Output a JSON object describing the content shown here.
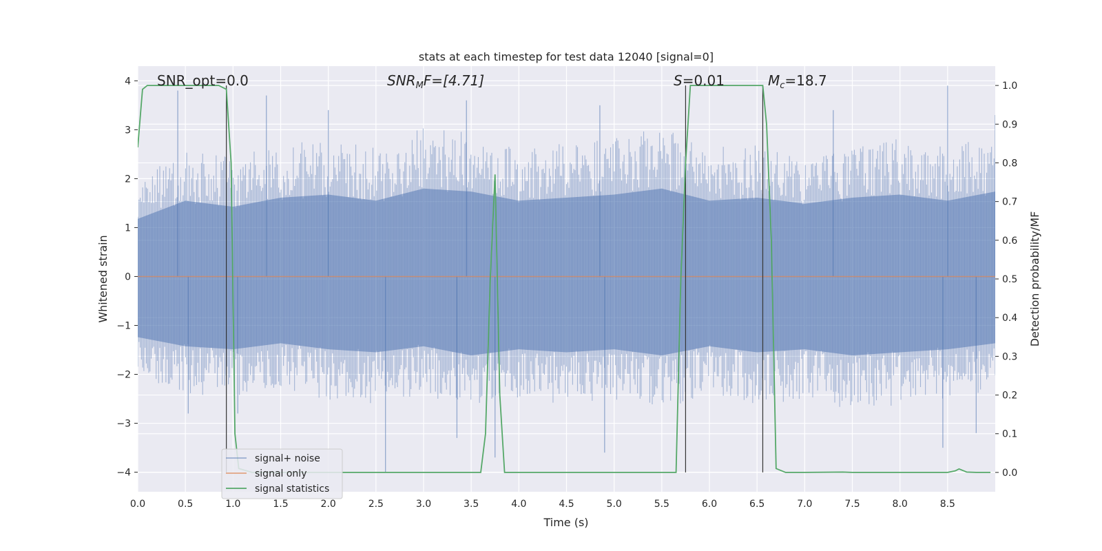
{
  "chart_data": {
    "type": "line",
    "title": "stats at each timestep for test data 12040 [signal=0]",
    "xlabel": "Time (s)",
    "ylabel": "Whitened strain",
    "ylabel_right": "Detection probability/MF",
    "xlim": [
      0.0,
      9.0
    ],
    "ylim": [
      -4.4,
      4.3
    ],
    "ylim_right": [
      -0.05,
      1.05
    ],
    "xticks": [
      0.0,
      0.5,
      1.0,
      1.5,
      2.0,
      2.5,
      3.0,
      3.5,
      4.0,
      4.5,
      5.0,
      5.5,
      6.0,
      6.5,
      7.0,
      7.5,
      8.0,
      8.5
    ],
    "xtick_labels": [
      "0.0",
      "0.5",
      "1.0",
      "1.5",
      "2.0",
      "2.5",
      "3.0",
      "3.5",
      "4.0",
      "4.5",
      "5.0",
      "5.5",
      "6.0",
      "6.5",
      "7.0",
      "7.5",
      "8.0",
      "8.5"
    ],
    "yticks": [
      -4,
      -3,
      -2,
      -1,
      0,
      1,
      2,
      3,
      4
    ],
    "ytick_labels": [
      "−4",
      "−3",
      "−2",
      "−1",
      "0",
      "1",
      "2",
      "3",
      "4"
    ],
    "yticks_right": [
      0.0,
      0.1,
      0.2,
      0.3,
      0.4,
      0.5,
      0.6,
      0.7,
      0.8,
      0.9,
      1.0
    ],
    "ytick_labels_right": [
      "0.0",
      "0.1",
      "0.2",
      "0.3",
      "0.4",
      "0.5",
      "0.6",
      "0.7",
      "0.8",
      "0.9",
      "1.0"
    ],
    "grid": true,
    "legend_placement": "lower-left",
    "annotations": {
      "snr_opt": "SNR_opt=0.0",
      "snr_mf_main": "SNR",
      "snr_mf_sub": "M",
      "snr_mf_rest": "F=[4.71]",
      "s_main": "S",
      "s_rest": "=0.01",
      "mc_main": "M",
      "mc_sub": "c",
      "mc_rest": "=18.7"
    },
    "vertical_lines_x": [
      0.93,
      5.75,
      6.56
    ],
    "series": [
      {
        "name": "signal+ noise",
        "color": "#4c72b0",
        "axis": "left",
        "description": "dense whitened noise, roughly spanning -2 to 2 with spikes to about ±3.8",
        "envelope_x": [
          0.0,
          0.5,
          1.0,
          1.5,
          2.0,
          2.5,
          3.0,
          3.5,
          4.0,
          4.5,
          5.0,
          5.5,
          6.0,
          6.5,
          7.0,
          7.5,
          8.0,
          8.5,
          9.0
        ],
        "envelope_upper": [
          1.9,
          2.5,
          2.3,
          2.6,
          2.7,
          2.5,
          2.9,
          2.8,
          2.5,
          2.6,
          2.7,
          2.9,
          2.5,
          2.6,
          2.4,
          2.6,
          2.7,
          2.5,
          2.8
        ],
        "envelope_lower": [
          -2.0,
          -2.3,
          -2.4,
          -2.2,
          -2.4,
          -2.5,
          -2.3,
          -2.6,
          -2.4,
          -2.5,
          -2.4,
          -2.6,
          -2.3,
          -2.5,
          -2.4,
          -2.6,
          -2.5,
          -2.4,
          -2.2
        ],
        "spikes": [
          {
            "x": 0.42,
            "y": 3.8
          },
          {
            "x": 1.35,
            "y": 3.7
          },
          {
            "x": 2.0,
            "y": 3.4
          },
          {
            "x": 3.45,
            "y": 3.6
          },
          {
            "x": 4.85,
            "y": 3.5
          },
          {
            "x": 7.3,
            "y": 3.4
          },
          {
            "x": 8.5,
            "y": 3.9
          },
          {
            "x": 9.0,
            "y": 3.3
          },
          {
            "x": 0.53,
            "y": -2.8
          },
          {
            "x": 2.6,
            "y": -4.0
          },
          {
            "x": 3.35,
            "y": -3.3
          },
          {
            "x": 3.75,
            "y": -3.7
          },
          {
            "x": 4.9,
            "y": -3.6
          },
          {
            "x": 8.45,
            "y": -3.5
          },
          {
            "x": 8.8,
            "y": -3.2
          },
          {
            "x": 1.05,
            "y": -2.8
          }
        ]
      },
      {
        "name": "signal only",
        "color": "#dd8452",
        "axis": "left",
        "x": [
          0.0,
          9.0
        ],
        "y": [
          0.0,
          0.0
        ]
      },
      {
        "name": "signal statistics",
        "color": "#55a868",
        "axis": "right",
        "x": [
          0.0,
          0.05,
          0.1,
          0.2,
          0.3,
          0.5,
          0.7,
          0.85,
          0.93,
          0.98,
          1.02,
          1.06,
          1.2,
          1.5,
          2.0,
          2.5,
          3.0,
          3.5,
          3.6,
          3.65,
          3.7,
          3.75,
          3.8,
          3.85,
          3.9,
          4.0,
          4.5,
          5.0,
          5.5,
          5.65,
          5.7,
          5.75,
          5.8,
          5.85,
          6.0,
          6.5,
          6.56,
          6.6,
          6.65,
          6.7,
          6.8,
          7.0,
          7.4,
          7.5,
          8.0,
          8.5,
          8.58,
          8.62,
          8.7,
          8.8,
          8.95
        ],
        "y": [
          0.84,
          0.99,
          1.0,
          1.0,
          1.0,
          1.0,
          1.0,
          1.0,
          0.99,
          0.8,
          0.1,
          0.01,
          0.0,
          0.0,
          0.0,
          0.0,
          0.0,
          0.0,
          0.0,
          0.1,
          0.5,
          0.77,
          0.2,
          0.0,
          0.0,
          0.0,
          0.0,
          0.0,
          0.0,
          0.0,
          0.5,
          0.8,
          1.0,
          1.0,
          1.0,
          1.0,
          1.0,
          0.9,
          0.6,
          0.01,
          0.0,
          0.0,
          0.001,
          0.0,
          0.0,
          0.0,
          0.004,
          0.009,
          0.001,
          0.0,
          0.0
        ]
      }
    ]
  }
}
